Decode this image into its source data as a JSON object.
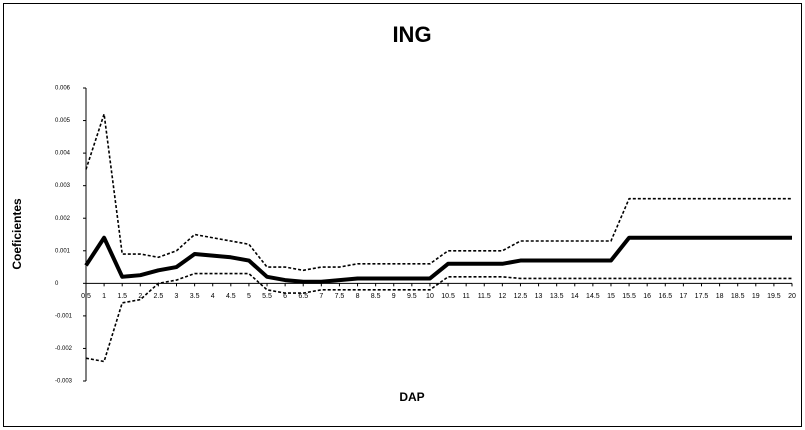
{
  "chart_data": {
    "type": "line",
    "title": "ING",
    "x_label": "DAP",
    "y_label": "Coeficientes",
    "x": [
      0.5,
      1,
      1.5,
      2,
      2.5,
      3,
      3.5,
      4,
      4.5,
      5,
      5.5,
      6,
      6.5,
      7,
      7.5,
      8,
      8.5,
      9,
      9.5,
      10,
      10.5,
      11,
      11.5,
      12,
      12.5,
      13,
      13.5,
      14,
      14.5,
      15,
      15.5,
      16,
      16.5,
      17,
      17.5,
      18,
      18.5,
      19,
      19.5,
      20
    ],
    "series": [
      {
        "color": "#000000",
        "style": "solid",
        "values": [
          0.00055,
          0.0014,
          0.0002,
          0.00025,
          0.0004,
          0.0005,
          0.0009,
          0.00085,
          0.0008,
          0.0007,
          0.0002,
          0.0001,
          5e-05,
          5e-05,
          0.0001,
          0.00015,
          0.00015,
          0.00015,
          0.00015,
          0.00015,
          0.0006,
          0.0006,
          0.0006,
          0.0006,
          0.0007,
          0.0007,
          0.0007,
          0.0007,
          0.0007,
          0.0007,
          0.0014,
          0.0014,
          0.0014,
          0.0014,
          0.0014,
          0.0014,
          0.0014,
          0.0014,
          0.0014,
          0.0014
        ]
      },
      {
        "color": "#000000",
        "style": "dashed",
        "values": [
          0.0035,
          0.0052,
          0.0009,
          0.0009,
          0.0008,
          0.001,
          0.0015,
          0.0014,
          0.0013,
          0.0012,
          0.0005,
          0.0005,
          0.0004,
          0.0005,
          0.0005,
          0.0006,
          0.0006,
          0.0006,
          0.0006,
          0.0006,
          0.001,
          0.001,
          0.001,
          0.001,
          0.0013,
          0.0013,
          0.0013,
          0.0013,
          0.0013,
          0.0013,
          0.0026,
          0.0026,
          0.0026,
          0.0026,
          0.0026,
          0.0026,
          0.0026,
          0.0026,
          0.0026,
          0.0026
        ]
      },
      {
        "color": "#000000",
        "style": "dashed",
        "values": [
          -0.0023,
          -0.0024,
          -0.0006,
          -0.0005,
          0,
          0.0001,
          0.0003,
          0.0003,
          0.0003,
          0.0003,
          -0.0002,
          -0.0003,
          -0.0003,
          -0.0002,
          -0.0002,
          -0.0002,
          -0.0002,
          -0.0002,
          -0.0002,
          -0.0002,
          0.0002,
          0.0002,
          0.0002,
          0.0002,
          0.00015,
          0.00015,
          0.00015,
          0.00015,
          0.00015,
          0.00015,
          0.00015,
          0.00015,
          0.00015,
          0.00015,
          0.00015,
          0.00015,
          0.00015,
          0.00015,
          0.00015,
          0.00015
        ]
      }
    ],
    "xlim": [
      0.5,
      20
    ],
    "xticks": [
      0.5,
      1,
      1.5,
      2,
      2.5,
      3,
      3.5,
      4,
      4.5,
      5,
      5.5,
      6,
      6.5,
      7,
      7.5,
      8,
      8.5,
      9,
      9.5,
      10,
      10.5,
      11,
      11.5,
      12,
      12.5,
      13,
      13.5,
      14,
      14.5,
      15,
      15.5,
      16,
      16.5,
      17,
      17.5,
      18,
      18.5,
      19,
      19.5,
      20
    ],
    "ylim": [
      -0.003,
      0.006
    ],
    "yticks": [
      0.006,
      0.005,
      0.004,
      0.003,
      0.002,
      0.001,
      0,
      -0.001,
      -0.002,
      -0.003
    ],
    "grid": false
  }
}
